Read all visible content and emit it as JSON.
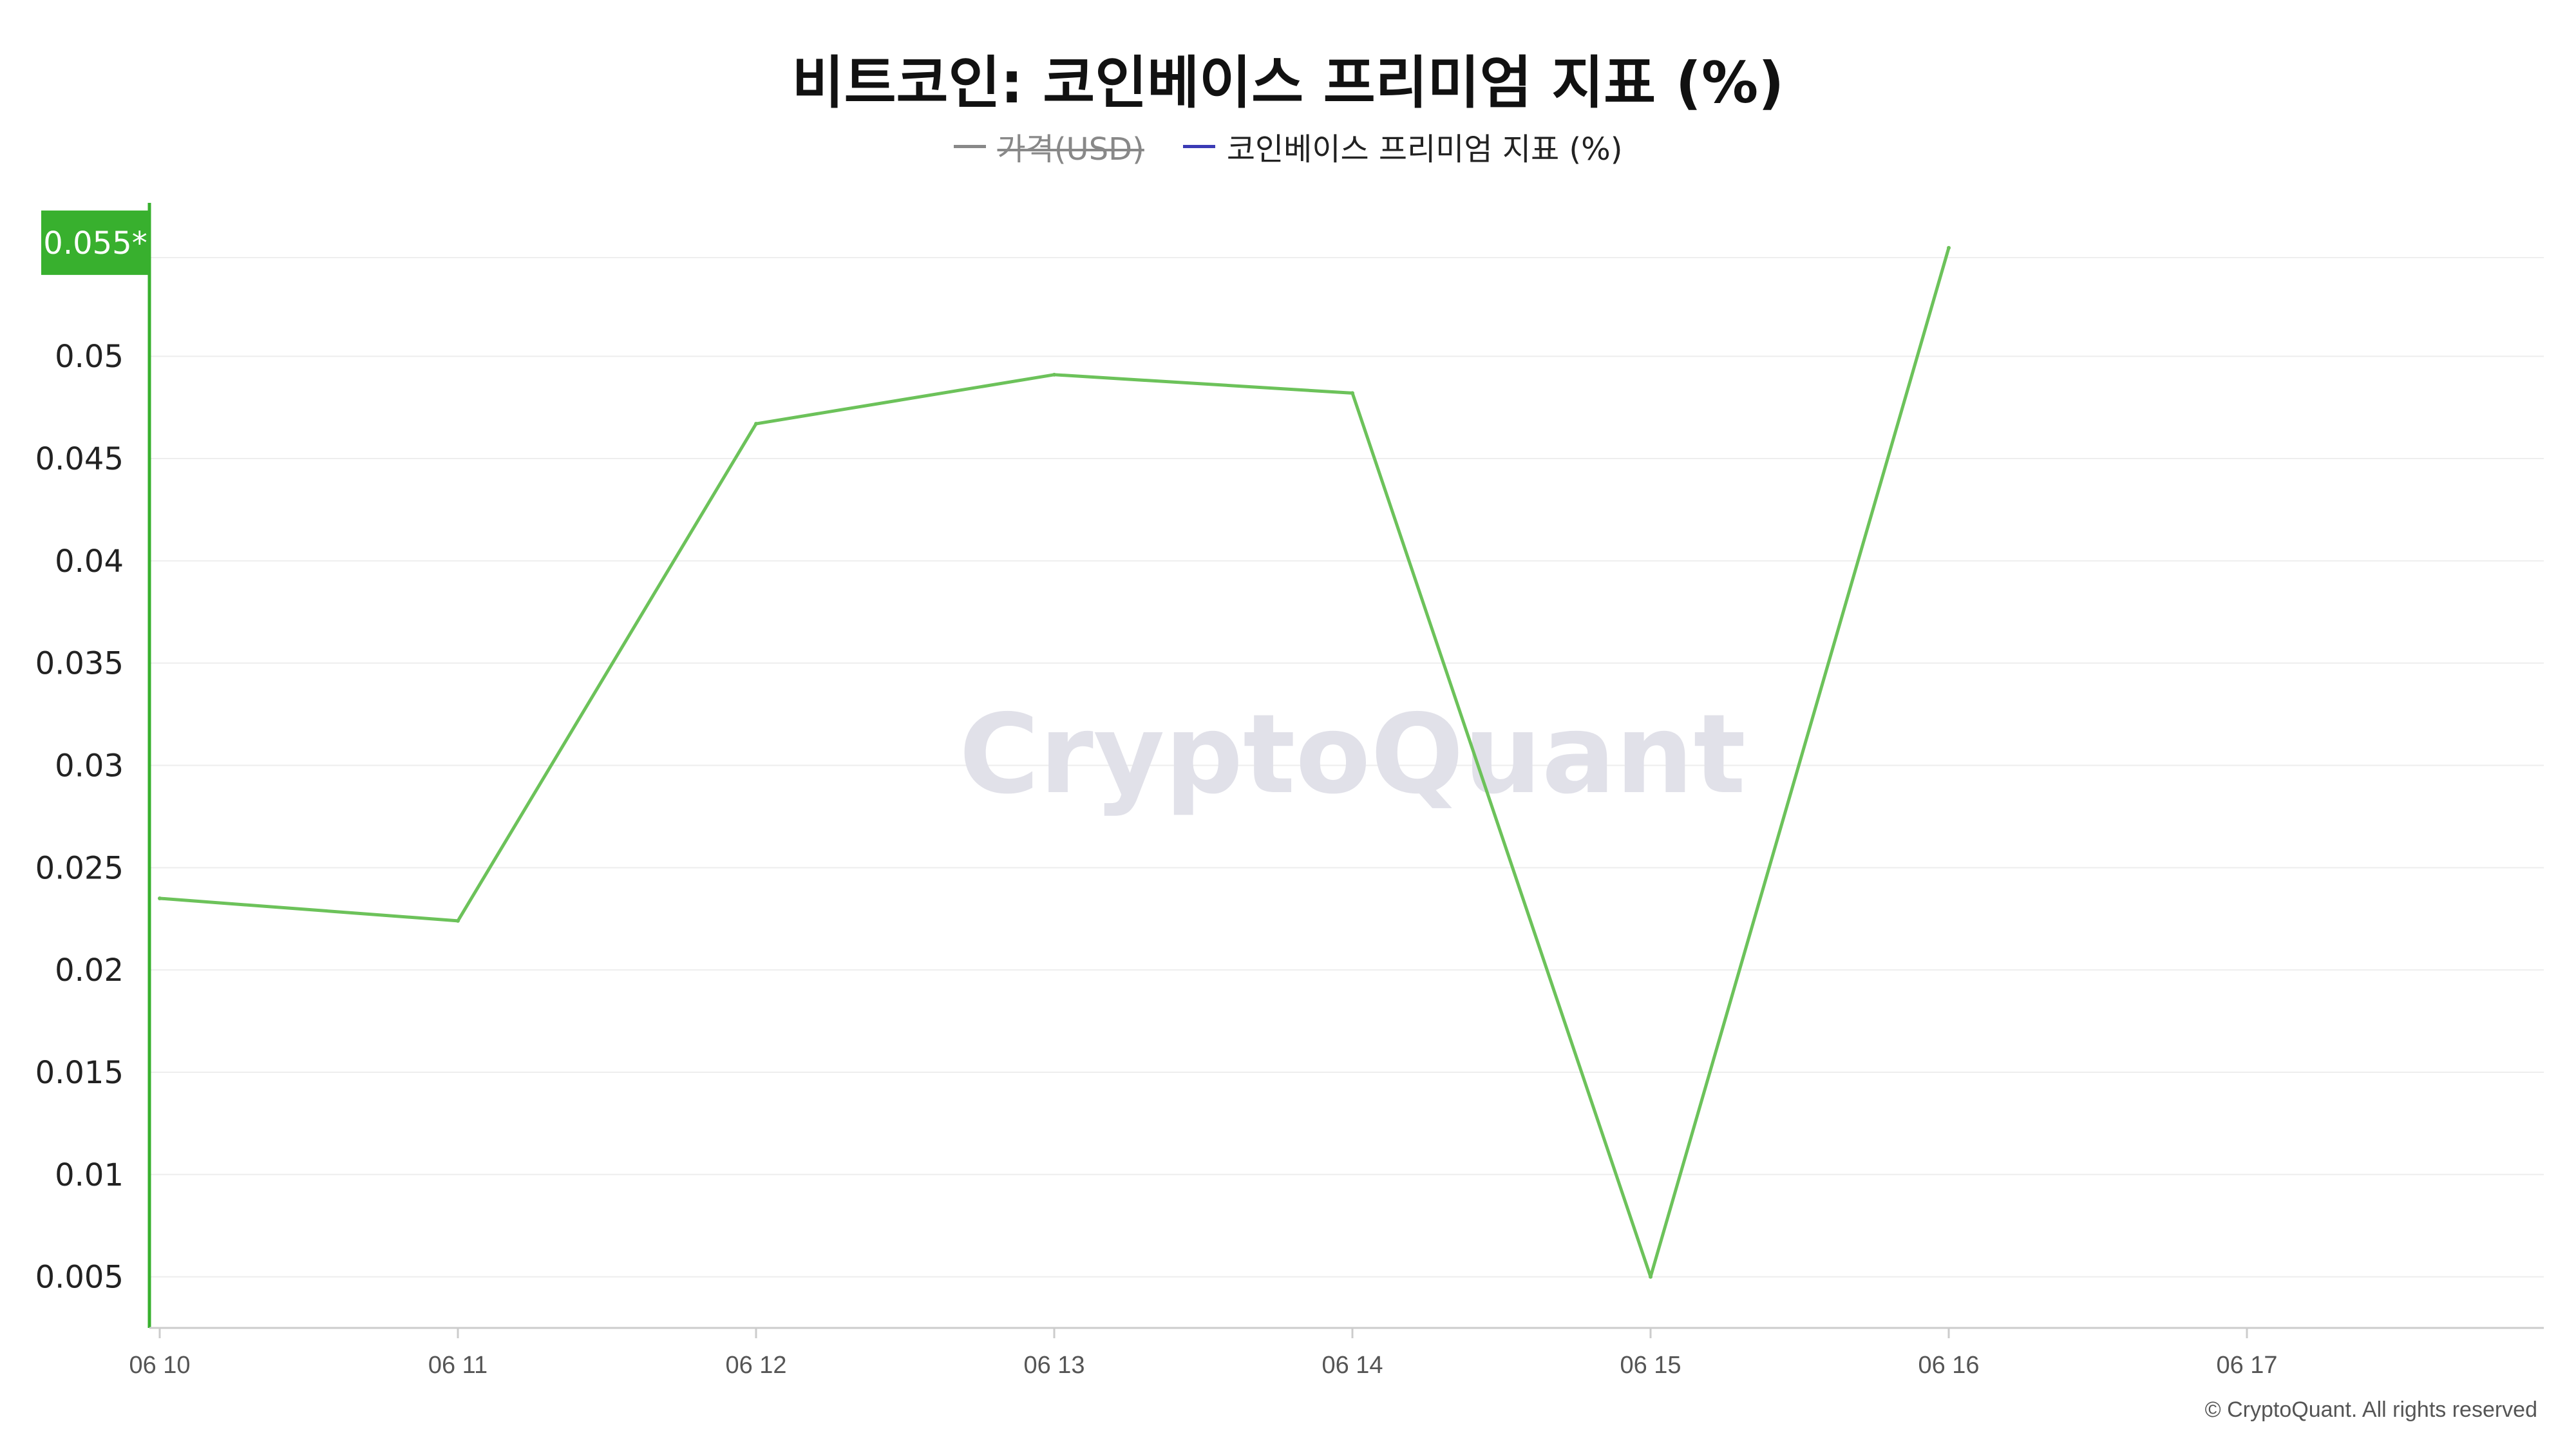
{
  "title": "비트코인: 코인베이스 프리미엄 지표 (%)",
  "legend": [
    {
      "label": "가격(USD)",
      "color": "#888888",
      "hidden": true
    },
    {
      "label": "코인베이스 프리미엄 지표 (%)",
      "color": "#3b3bb5",
      "hidden": false
    }
  ],
  "watermark": "CryptoQuant",
  "copyright": "© CryptoQuant. All rights reserved",
  "colors": {
    "line": "#6cc25a",
    "axis_accent": "#38b02e",
    "grid": "#eeeeee",
    "tick_text": "#222222",
    "x_tick_text": "#555555",
    "watermark": "#e1e1e9"
  },
  "chart_data": {
    "type": "line",
    "title": "비트코인: 코인베이스 프리미엄 지표 (%)",
    "xlabel": "",
    "ylabel": "",
    "x": [
      "06 10",
      "06 11",
      "06 12",
      "06 13",
      "06 14",
      "06 15",
      "06 16"
    ],
    "x_ticks": [
      "06 10",
      "06 11",
      "06 12",
      "06 13",
      "06 14",
      "06 15",
      "06 16",
      "06 17"
    ],
    "y_ticks": [
      "0.005",
      "0.01",
      "0.015",
      "0.02",
      "0.025",
      "0.03",
      "0.035",
      "0.04",
      "0.045",
      "0.05"
    ],
    "ylim": [
      0.0025,
      0.0575
    ],
    "grid": true,
    "legend_position": "top-center",
    "series": [
      {
        "name": "코인베이스 프리미엄 지표 (%)",
        "values": [
          0.0235,
          0.0224,
          0.0467,
          0.0491,
          0.0482,
          0.005,
          0.0553
        ]
      }
    ],
    "last_value_label": "0.055*"
  }
}
